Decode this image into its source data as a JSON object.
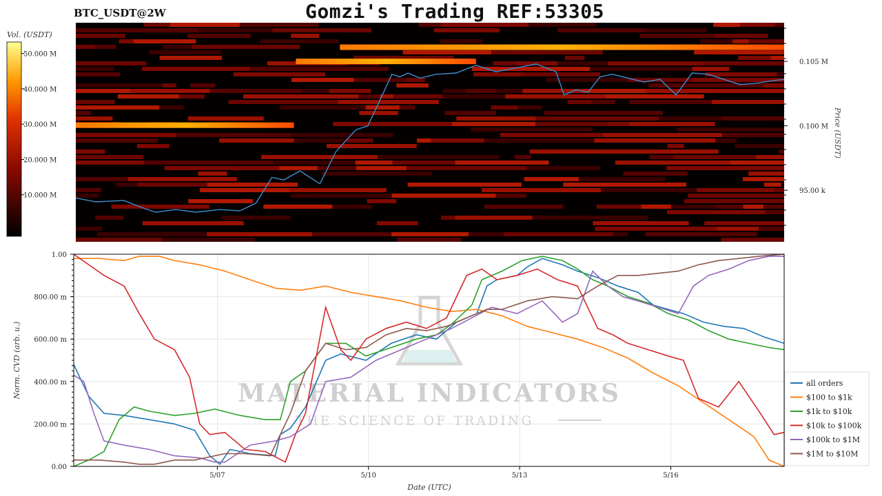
{
  "header": {
    "symbol": "BTC_USDT@2W",
    "title": "Gomzi's Trading REF:53305"
  },
  "heatmap_panel": {
    "colorbar_label": "Vol. (USDT)",
    "colorbar_ticks": [
      "10.000 M",
      "20.000 M",
      "30.000 M",
      "40.000 M",
      "50.000 M"
    ],
    "price_axis_label": "Price (USDT)",
    "price_ticks": [
      "95.00 k",
      "0.100 M",
      "0.105 M"
    ]
  },
  "watermark": {
    "brand": "MATERIAL INDICATORS",
    "tagline": "THE SCIENCE OF TRADING"
  },
  "colors": {
    "all_orders": "#1f77b4",
    "100_1k": "#ff7f0e",
    "1k_10k": "#2ca02c",
    "10k_100k": "#d62728",
    "100k_1M": "#9467bd",
    "1M_10M": "#8c564b",
    "price_line": "#3b8fd0"
  },
  "chart_data": [
    {
      "type": "heatmap",
      "title": "",
      "xlabel": "",
      "ylabel": "Price (USDT)",
      "colorbar_label": "Vol. (USDT)",
      "colorbar_range": [
        0,
        55000000
      ],
      "ylim": [
        91000,
        108000
      ],
      "y_ticks": [
        95000,
        100000,
        105000
      ],
      "price_series": {
        "name": "price",
        "x": [
          0,
          0.5,
          1.2,
          1.7,
          2.0,
          2.5,
          3.0,
          3.6,
          4.1,
          4.5,
          4.9,
          5.2,
          5.6,
          6.1,
          6.5,
          7.0,
          7.3,
          7.6,
          7.9,
          8.1,
          8.3,
          8.6,
          9.0,
          9.5,
          10.0,
          10.5,
          11.0,
          11.5,
          12.0,
          12.2,
          12.5,
          12.8,
          13.1,
          13.4,
          13.8,
          14.2,
          14.6,
          15.0,
          15.4,
          15.8,
          16.2,
          16.6,
          17.0,
          17.4,
          17.7
        ],
        "y": [
          94400,
          94100,
          94200,
          93600,
          93300,
          93500,
          93300,
          93500,
          93400,
          94000,
          96000,
          95800,
          96500,
          95500,
          98000,
          99700,
          100000,
          102000,
          104000,
          103800,
          104100,
          103700,
          104000,
          104100,
          104700,
          104200,
          104500,
          104800,
          104200,
          102400,
          102800,
          102600,
          103800,
          104000,
          103700,
          103400,
          103600,
          102400,
          104100,
          104000,
          103600,
          103200,
          103300,
          103500,
          103600
        ]
      },
      "dense_levels": [
        {
          "price": 100050,
          "x_start": 0,
          "x_end": 5.45,
          "note": "bright band"
        },
        {
          "price": 105000,
          "x_start": 5.5,
          "x_end": 10.0,
          "note": "bright band"
        },
        {
          "price": 106100,
          "x_start": 6.6,
          "x_end": 17.7
        }
      ]
    },
    {
      "type": "line",
      "title": "",
      "xlabel": "Date (UTC)",
      "ylabel": "Norm. CVD (arb. u.)",
      "ylim": [
        0,
        1
      ],
      "y_ticks": [
        "0.00",
        "200.00 m",
        "400.00 m",
        "600.00 m",
        "800.00 m",
        "1.00"
      ],
      "x_ticks": [
        "5/07",
        "5/10",
        "5/13",
        "5/16"
      ],
      "x_tick_positions_days": [
        2.85,
        5.85,
        8.85,
        11.85
      ],
      "xlim_days": [
        0,
        14.1
      ],
      "legend_position": "bottom-right",
      "series": [
        {
          "name": "all orders",
          "x": [
            0,
            0.3,
            0.6,
            1.0,
            1.5,
            2.0,
            2.4,
            2.7,
            2.9,
            3.1,
            3.5,
            4.0,
            4.1,
            4.3,
            4.6,
            5.0,
            5.3,
            5.8,
            6.3,
            6.8,
            7.2,
            7.6,
            8.0,
            8.2,
            8.4,
            8.8,
            9.0,
            9.3,
            9.7,
            10.0,
            10.4,
            10.8,
            11.2,
            11.5,
            11.8,
            12.1,
            12.5,
            12.9,
            13.3,
            13.7,
            14.1
          ],
          "y": [
            0.48,
            0.33,
            0.25,
            0.24,
            0.22,
            0.2,
            0.17,
            0.05,
            0.01,
            0.08,
            0.06,
            0.05,
            0.15,
            0.18,
            0.28,
            0.5,
            0.53,
            0.5,
            0.58,
            0.62,
            0.6,
            0.68,
            0.72,
            0.85,
            0.88,
            0.9,
            0.94,
            0.98,
            0.95,
            0.92,
            0.89,
            0.85,
            0.82,
            0.76,
            0.74,
            0.72,
            0.68,
            0.66,
            0.65,
            0.61,
            0.58
          ]
        },
        {
          "name": "$100 to $1k",
          "x": [
            0,
            0.5,
            1.0,
            1.3,
            1.7,
            2.0,
            2.5,
            3.0,
            3.5,
            4.0,
            4.5,
            5.0,
            5.5,
            6.0,
            6.5,
            7.0,
            7.5,
            8.0,
            8.5,
            9.0,
            9.5,
            10.0,
            10.5,
            11.0,
            11.5,
            12.0,
            12.5,
            13.0,
            13.5,
            13.8,
            14.1
          ],
          "y": [
            0.98,
            0.98,
            0.97,
            0.99,
            0.99,
            0.97,
            0.95,
            0.92,
            0.88,
            0.84,
            0.83,
            0.85,
            0.82,
            0.8,
            0.78,
            0.75,
            0.73,
            0.74,
            0.71,
            0.66,
            0.63,
            0.6,
            0.56,
            0.51,
            0.44,
            0.38,
            0.3,
            0.22,
            0.14,
            0.03,
            0.0
          ]
        },
        {
          "name": "$1k to $10k",
          "x": [
            0,
            0.3,
            0.6,
            0.9,
            1.2,
            1.5,
            2.0,
            2.4,
            2.8,
            3.3,
            3.8,
            4.1,
            4.3,
            4.6,
            5.0,
            5.4,
            5.8,
            6.3,
            6.8,
            7.2,
            7.5,
            7.9,
            8.1,
            8.5,
            8.9,
            9.3,
            9.7,
            10.0,
            10.3,
            10.6,
            11.0,
            11.4,
            11.8,
            12.2,
            12.6,
            13.0,
            13.4,
            13.8,
            14.1
          ],
          "y": [
            0.0,
            0.03,
            0.07,
            0.22,
            0.28,
            0.26,
            0.24,
            0.25,
            0.27,
            0.24,
            0.22,
            0.22,
            0.4,
            0.45,
            0.58,
            0.58,
            0.52,
            0.56,
            0.6,
            0.62,
            0.67,
            0.76,
            0.88,
            0.92,
            0.97,
            0.99,
            0.97,
            0.93,
            0.88,
            0.85,
            0.8,
            0.77,
            0.72,
            0.69,
            0.64,
            0.6,
            0.58,
            0.56,
            0.55
          ]
        },
        {
          "name": "$10k to $100k",
          "x": [
            0,
            0.3,
            0.6,
            1.0,
            1.3,
            1.6,
            2.0,
            2.3,
            2.5,
            2.7,
            3.0,
            3.4,
            3.8,
            4.2,
            4.4,
            4.6,
            5.0,
            5.3,
            5.5,
            5.8,
            6.2,
            6.6,
            7.0,
            7.4,
            7.8,
            8.1,
            8.4,
            8.8,
            9.2,
            9.6,
            10.0,
            10.4,
            10.7,
            11.0,
            11.4,
            11.8,
            12.1,
            12.4,
            12.8,
            13.2,
            13.6,
            13.9,
            14.1
          ],
          "y": [
            1.0,
            0.95,
            0.9,
            0.85,
            0.72,
            0.6,
            0.55,
            0.42,
            0.2,
            0.15,
            0.16,
            0.08,
            0.07,
            0.02,
            0.15,
            0.25,
            0.75,
            0.55,
            0.5,
            0.6,
            0.65,
            0.68,
            0.65,
            0.7,
            0.9,
            0.93,
            0.88,
            0.9,
            0.93,
            0.88,
            0.85,
            0.65,
            0.62,
            0.58,
            0.55,
            0.52,
            0.5,
            0.32,
            0.28,
            0.4,
            0.26,
            0.15,
            0.16
          ]
        },
        {
          "name": "$100k to $1M",
          "x": [
            0,
            0.2,
            0.4,
            0.6,
            1.0,
            1.5,
            2.0,
            2.5,
            2.8,
            3.0,
            3.5,
            4.0,
            4.3,
            4.7,
            5.0,
            5.5,
            6.0,
            6.5,
            7.0,
            7.5,
            7.9,
            8.3,
            8.8,
            9.3,
            9.7,
            10.0,
            10.3,
            10.6,
            10.9,
            11.2,
            11.6,
            12.0,
            12.3,
            12.6,
            13.0,
            13.4,
            13.8,
            14.1
          ],
          "y": [
            0.43,
            0.4,
            0.25,
            0.12,
            0.1,
            0.08,
            0.05,
            0.04,
            0.02,
            0.02,
            0.1,
            0.12,
            0.14,
            0.2,
            0.4,
            0.42,
            0.5,
            0.55,
            0.6,
            0.65,
            0.7,
            0.75,
            0.72,
            0.78,
            0.68,
            0.72,
            0.92,
            0.85,
            0.8,
            0.78,
            0.75,
            0.72,
            0.85,
            0.9,
            0.93,
            0.97,
            0.99,
            0.99
          ]
        },
        {
          "name": "$1M to $10M",
          "x": [
            0,
            0.5,
            1.0,
            1.3,
            1.6,
            2.0,
            2.4,
            2.8,
            3.0,
            3.4,
            3.9,
            4.1,
            4.3,
            4.6,
            5.0,
            5.4,
            5.8,
            6.2,
            6.6,
            7.0,
            7.4,
            7.8,
            8.2,
            8.5,
            9.0,
            9.5,
            10.0,
            10.4,
            10.8,
            11.2,
            11.6,
            12.0,
            12.4,
            12.8,
            13.2,
            13.6,
            14.1
          ],
          "y": [
            0.03,
            0.03,
            0.02,
            0.01,
            0.01,
            0.03,
            0.03,
            0.05,
            0.06,
            0.06,
            0.05,
            0.15,
            0.25,
            0.45,
            0.58,
            0.55,
            0.56,
            0.62,
            0.65,
            0.64,
            0.66,
            0.7,
            0.74,
            0.74,
            0.78,
            0.8,
            0.79,
            0.85,
            0.9,
            0.9,
            0.91,
            0.92,
            0.95,
            0.97,
            0.98,
            0.99,
            1.0
          ]
        }
      ]
    }
  ]
}
